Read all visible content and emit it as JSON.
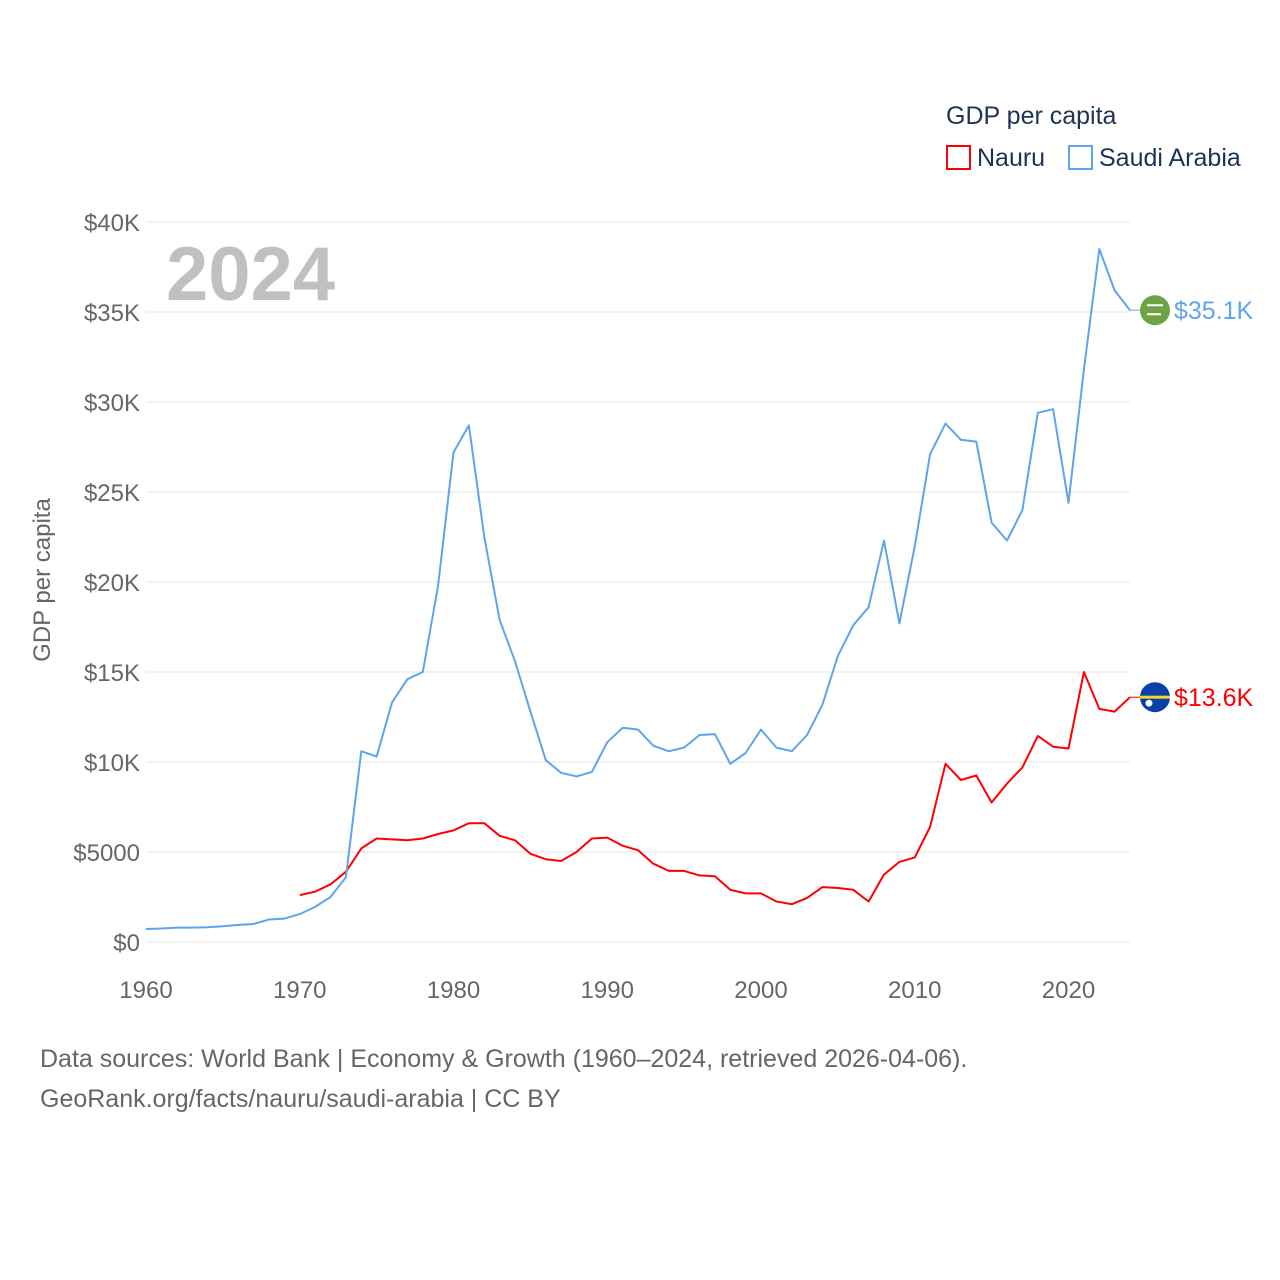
{
  "chart_data": {
    "type": "line",
    "title": "GDP per capita",
    "ylabel": "GDP per capita",
    "xlabel": "",
    "year_watermark": "2024",
    "xlim": [
      1960,
      2024
    ],
    "ylim": [
      0,
      40000
    ],
    "x_ticks": [
      1960,
      1970,
      1980,
      1990,
      2000,
      2010,
      2020
    ],
    "y_ticks": [
      0,
      5000,
      10000,
      15000,
      20000,
      25000,
      30000,
      35000,
      40000
    ],
    "y_tick_labels": [
      "$0",
      "$5000",
      "$10K",
      "$15K",
      "$20K",
      "$25K",
      "$30K",
      "$35K",
      "$40K"
    ],
    "grid": true,
    "legend": {
      "title": "GDP per capita",
      "placement": "top-right"
    },
    "series": [
      {
        "name": "Nauru",
        "color": "#ff0000",
        "end_label": "$13.6K",
        "start_year": 1970,
        "values": [
          2.6,
          2.8,
          3.2,
          3.9,
          5.2,
          5.75,
          5.7,
          5.65,
          5.75,
          6.0,
          6.2,
          6.6,
          6.6,
          5.9,
          5.65,
          4.9,
          4.6,
          4.5,
          5.0,
          5.75,
          5.8,
          5.35,
          5.1,
          4.35,
          3.95,
          3.95,
          3.7,
          3.65,
          2.9,
          2.7,
          2.7,
          2.25,
          2.1,
          2.45,
          3.05,
          3.0,
          2.9,
          2.25,
          3.75,
          4.45,
          4.7,
          6.4,
          9.9,
          9.0,
          9.25,
          7.75,
          8.8,
          9.7,
          11.45,
          10.85,
          10.75,
          15.0,
          12.95,
          12.8,
          13.6
        ],
        "unit": "thousand USD"
      },
      {
        "name": "Saudi Arabia",
        "color": "#5ea5ec",
        "end_label": "$35.1K",
        "start_year": 1960,
        "values": [
          0.72,
          0.75,
          0.8,
          0.8,
          0.82,
          0.88,
          0.95,
          1.0,
          1.25,
          1.3,
          1.55,
          1.95,
          2.5,
          3.6,
          10.6,
          10.3,
          13.3,
          14.6,
          15.0,
          19.8,
          27.2,
          28.7,
          22.5,
          17.9,
          15.6,
          12.8,
          10.1,
          9.4,
          9.2,
          9.45,
          11.1,
          11.9,
          11.8,
          10.9,
          10.6,
          10.8,
          11.5,
          11.55,
          9.9,
          10.5,
          11.8,
          10.8,
          10.6,
          11.5,
          13.2,
          15.9,
          17.6,
          18.6,
          22.3,
          17.7,
          22.0,
          27.1,
          28.8,
          27.9,
          27.8,
          23.3,
          22.3,
          24.0,
          29.4,
          29.6,
          24.4,
          31.8,
          38.5,
          36.2,
          35.1
        ],
        "unit": "thousand USD"
      }
    ]
  },
  "footer": {
    "line1": "Data sources: World Bank | Economy & Growth (1960–2024, retrieved 2026-04-06).",
    "line2": "GeoRank.org/facts/nauru/saudi-arabia | CC BY"
  },
  "colors": {
    "grid": "#e6e6e6",
    "text": "#666666",
    "legend_text": "#1d3354",
    "watermark": "#c0c0c0"
  }
}
